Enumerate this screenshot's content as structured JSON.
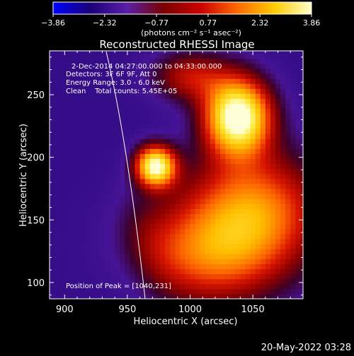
{
  "chart_data": {
    "type": "heatmap",
    "title": "Reconstructed RHESSI Image",
    "xlabel": "Heliocentric X (arcsec)",
    "ylabel": "Heliocentric Y (arcsec)",
    "xlim": [
      888,
      1090
    ],
    "ylim": [
      87,
      285
    ],
    "x_ticks": [
      900,
      950,
      1000,
      1050
    ],
    "y_ticks": [
      100,
      150,
      200,
      250
    ],
    "colorbar": {
      "range": [
        -3.86,
        3.86
      ],
      "tick_values": [
        -3.86,
        -2.32,
        -0.77,
        0.77,
        2.32,
        3.86
      ],
      "tick_labels": [
        "−3.86",
        "−2.32",
        "−0.77",
        "0.77",
        "2.32",
        "3.86"
      ],
      "unit_label": "(photons cm⁻² s⁻¹ asec⁻²)",
      "colormap": [
        "#0000ff",
        "#1a0078",
        "#5a1fa8",
        "#7a0000",
        "#cc0000",
        "#ff6a00",
        "#ffcc00",
        "#ffffcc"
      ]
    },
    "annotations": {
      "time": "2-Dec-2014 04:27:00.000 to 04:33:00.000",
      "detectors": "Detectors: 3F 6F 9F, Att 0",
      "energy": "Energy Range: 3.0 - 6.0 keV",
      "clean": "Clean    Total counts: 5.45E+05",
      "peak": "Position of Peak = [1040,231]"
    },
    "sources": [
      {
        "x": 972,
        "y": 193,
        "peak": 3.6
      },
      {
        "x": 1038,
        "y": 233,
        "peak": 3.86
      }
    ],
    "peak": [
      1040,
      231
    ]
  },
  "footer": {
    "date": "20-May-2022 03:28"
  }
}
